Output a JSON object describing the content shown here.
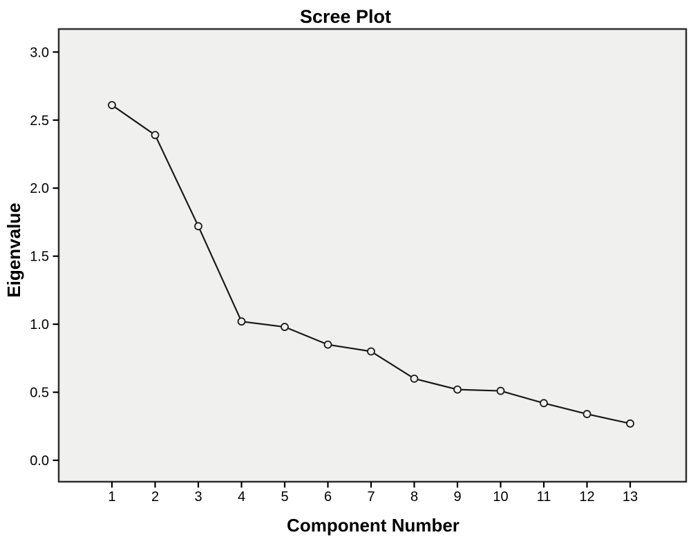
{
  "chart_data": {
    "type": "line",
    "title": "Scree Plot",
    "xlabel": "Component Number",
    "ylabel": "Eigenvalue",
    "series": [
      {
        "name": "Eigenvalue",
        "x": [
          1,
          2,
          3,
          4,
          5,
          6,
          7,
          8,
          9,
          10,
          11,
          12,
          13
        ],
        "values": [
          2.61,
          2.39,
          1.72,
          1.02,
          0.98,
          0.85,
          0.8,
          0.6,
          0.52,
          0.51,
          0.42,
          0.34,
          0.27
        ]
      }
    ],
    "x_tick_labels": [
      "1",
      "2",
      "3",
      "4",
      "5",
      "6",
      "7",
      "8",
      "9",
      "10",
      "11",
      "12",
      "13"
    ],
    "y_ticks": [
      0.0,
      0.5,
      1.0,
      1.5,
      2.0,
      2.5,
      3.0
    ],
    "y_tick_labels": [
      "0.0",
      "0.5",
      "1.0",
      "1.5",
      "2.0",
      "2.5",
      "3.0"
    ],
    "ylim": [
      -0.16,
      3.17
    ],
    "xlim": [
      -0.2,
      14.3
    ],
    "grid": false,
    "legend": null,
    "marker": "open-circle",
    "colors": {
      "line": "#1a1a1a",
      "marker_stroke": "#1a1a1a",
      "marker_fill": "#f0f0ee",
      "plot_background": "#f0f0ee",
      "plot_border": "#2e2e2e",
      "tick": "#000000",
      "text": "#000000",
      "page_background": "#ffffff"
    }
  }
}
